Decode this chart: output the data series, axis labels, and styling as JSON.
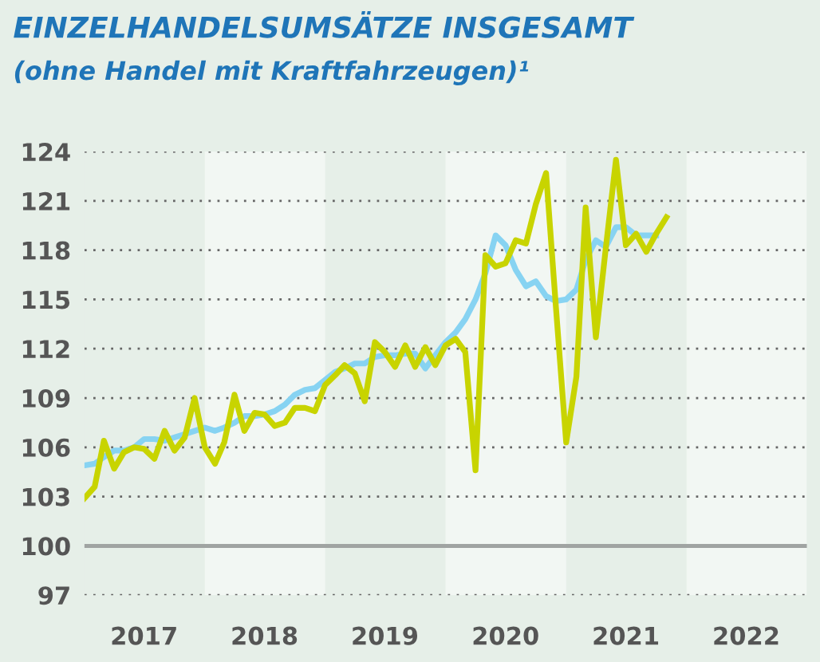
{
  "chart_data": {
    "type": "line",
    "title": "EINZELHANDELSUMSÄTZE INSGESAMT",
    "subtitle": "(ohne Handel mit Kraftfahrzeugen)¹",
    "x": [
      "2017-01",
      "2017-02",
      "2017-03",
      "2017-04",
      "2017-05",
      "2017-06",
      "2017-07",
      "2017-08",
      "2017-09",
      "2017-10",
      "2017-11",
      "2017-12",
      "2018-01",
      "2018-02",
      "2018-03",
      "2018-04",
      "2018-05",
      "2018-06",
      "2018-07",
      "2018-08",
      "2018-09",
      "2018-10",
      "2018-11",
      "2018-12",
      "2019-01",
      "2019-02",
      "2019-03",
      "2019-04",
      "2019-05",
      "2019-06",
      "2019-07",
      "2019-08",
      "2019-09",
      "2019-10",
      "2019-11",
      "2019-12",
      "2020-01",
      "2020-02",
      "2020-03",
      "2020-04",
      "2020-05",
      "2020-06",
      "2020-07",
      "2020-08",
      "2020-09",
      "2020-10",
      "2020-11",
      "2020-12",
      "2021-01",
      "2021-02",
      "2021-03",
      "2021-04",
      "2021-05",
      "2021-06",
      "2021-07",
      "2021-08",
      "2021-09",
      "2021-10",
      "2021-11"
    ],
    "series": [
      {
        "color": "#87d3f2",
        "values": [
          104.9,
          105.0,
          105.4,
          105.8,
          105.8,
          106.0,
          106.5,
          106.5,
          106.4,
          106.6,
          106.8,
          107.0,
          107.2,
          107.0,
          107.2,
          107.5,
          107.9,
          107.9,
          108.0,
          108.2,
          108.6,
          109.2,
          109.5,
          109.6,
          110.1,
          110.6,
          110.8,
          111.1,
          111.1,
          111.5,
          111.6,
          111.6,
          111.7,
          111.7,
          110.8,
          111.6,
          112.4,
          113.0,
          113.8,
          115.0,
          116.6,
          118.9,
          118.3,
          116.8,
          115.8,
          116.1,
          115.2,
          114.9,
          115.0,
          115.6,
          117.4,
          118.6,
          118.2,
          119.4,
          119.4,
          118.9,
          118.9,
          118.9,
          null
        ]
      },
      {
        "color": "#c8d400",
        "values": [
          102.9,
          103.6,
          106.4,
          104.7,
          105.7,
          106.0,
          105.9,
          105.3,
          107.0,
          105.8,
          106.6,
          109.0,
          106.0,
          105.0,
          106.3,
          109.2,
          107.0,
          108.1,
          108.0,
          107.3,
          107.5,
          108.4,
          108.4,
          108.2,
          109.8,
          110.4,
          111.0,
          110.5,
          108.8,
          112.4,
          111.8,
          110.9,
          112.2,
          110.9,
          112.1,
          111.0,
          112.2,
          112.6,
          111.8,
          104.6,
          117.7,
          117.0,
          117.2,
          118.6,
          118.4,
          120.8,
          122.7,
          114.5,
          106.3,
          110.3,
          120.6,
          112.7,
          118.1,
          123.5,
          118.3,
          119.0,
          117.9,
          119.0,
          120.0
        ]
      }
    ],
    "xlim": [
      "2017-01-01",
      "2023-01-01"
    ],
    "xticks": [
      {
        "value": "2017-07-01",
        "label": "2017"
      },
      {
        "value": "2018-07-01",
        "label": "2018"
      },
      {
        "value": "2019-07-01",
        "label": "2019"
      },
      {
        "value": "2020-07-01",
        "label": "2020"
      },
      {
        "value": "2021-07-01",
        "label": "2021"
      },
      {
        "value": "2022-07-01",
        "label": "2022"
      }
    ],
    "ylim": [
      97,
      124
    ],
    "yticks": [
      97,
      100,
      103,
      106,
      109,
      112,
      115,
      118,
      121,
      124
    ],
    "grid": "y",
    "line_style": "solid",
    "marker": "none",
    "legend": false,
    "ref_lines": [
      {
        "axis": "y",
        "value": 100,
        "color": "#a0a4a2"
      }
    ],
    "bands": [
      {
        "axis": "x",
        "from": "2018-01-01",
        "to": "2019-01-01",
        "color": "#f2f7f3"
      },
      {
        "axis": "x",
        "from": "2020-01-01",
        "to": "2021-01-01",
        "color": "#f2f7f3"
      },
      {
        "axis": "x",
        "from": "2022-01-01",
        "to": "2023-01-01",
        "color": "#f2f7f3"
      }
    ]
  }
}
